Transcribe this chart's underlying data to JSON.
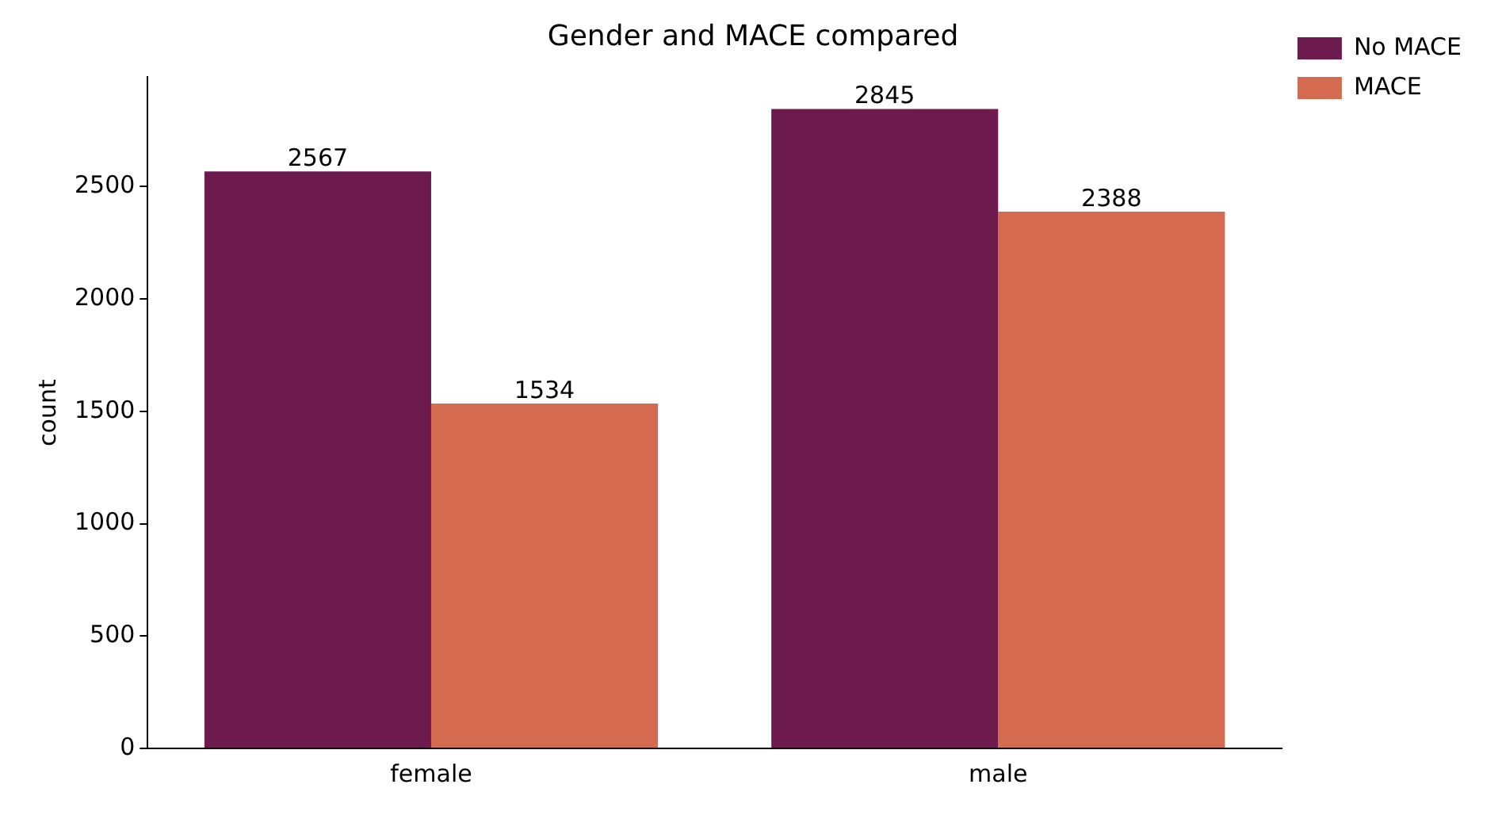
{
  "chart_data": {
    "type": "bar",
    "title": "Gender and MACE compared",
    "ylabel": "count",
    "categories": [
      "female",
      "male"
    ],
    "series": [
      {
        "name": "No MACE",
        "color": "#6d1a4f",
        "values": [
          2567,
          2845
        ]
      },
      {
        "name": "MACE",
        "color": "#d46a4f",
        "values": [
          1534,
          2388
        ]
      }
    ],
    "ylim": [
      0,
      2987
    ],
    "yticks": [
      0,
      500,
      1000,
      1500,
      2000,
      2500
    ],
    "grid": false,
    "legend": "top right",
    "data_labels": true
  }
}
